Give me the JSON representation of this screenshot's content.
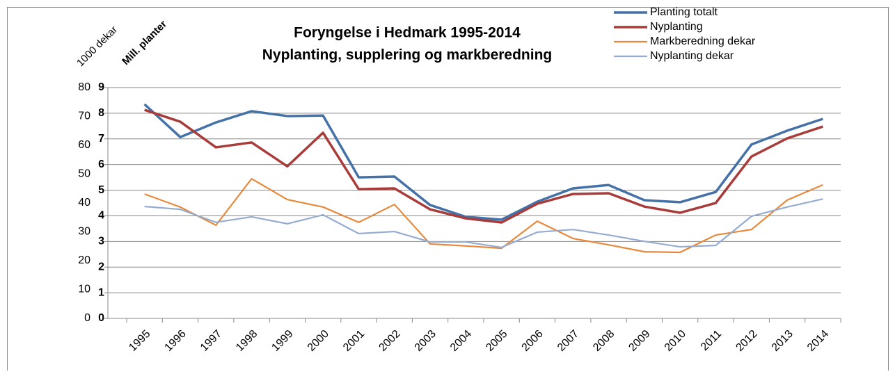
{
  "chart_data": {
    "type": "line",
    "title": "Foryngelse i Hedmark 1995-2014",
    "subtitle": "Nyplanting, supplering og markberedning",
    "ylabel": "1000 dekar",
    "y2label": "Mill. planter",
    "categories": [
      "1995",
      "1996",
      "1997",
      "1998",
      "1999",
      "2000",
      "2001",
      "2002",
      "2003",
      "2004",
      "2005",
      "2006",
      "2007",
      "2008",
      "2009",
      "2010",
      "2011",
      "2012",
      "2013",
      "2014"
    ],
    "series": [
      {
        "name": "Planting totalt",
        "color": "#4472a8",
        "axis": "y2",
        "values": [
          8.35,
          7.07,
          7.64,
          8.08,
          7.89,
          7.91,
          5.5,
          5.53,
          4.42,
          3.96,
          3.85,
          4.55,
          5.07,
          5.2,
          4.61,
          4.53,
          4.93,
          6.78,
          7.32,
          7.78
        ]
      },
      {
        "name": "Nyplanting",
        "color": "#a83c3a",
        "axis": "y2",
        "values": [
          8.13,
          7.67,
          6.67,
          6.86,
          5.93,
          7.24,
          5.04,
          5.07,
          4.25,
          3.9,
          3.74,
          4.47,
          4.85,
          4.88,
          4.36,
          4.12,
          4.5,
          6.31,
          7.02,
          7.48
        ]
      },
      {
        "name": "Markberedning dekar",
        "color": "#e8883a",
        "values": [
          43.1,
          38.6,
          32.3,
          48.4,
          41.2,
          38.6,
          33.3,
          39.5,
          25.8,
          25.1,
          24.3,
          33.7,
          27.7,
          25.5,
          23.1,
          22.9,
          28.9,
          30.8,
          41.0,
          46.3
        ]
      },
      {
        "name": "Nyplanting dekar",
        "color": "#95acd0",
        "values": [
          38.8,
          37.8,
          33.3,
          35.2,
          32.8,
          35.9,
          29.4,
          30.1,
          26.5,
          26.5,
          24.6,
          29.9,
          30.8,
          28.9,
          26.7,
          24.8,
          25.3,
          35.4,
          38.6,
          41.4
        ]
      }
    ],
    "ylim": [
      0,
      80
    ],
    "yticks": [
      0,
      10,
      20,
      30,
      40,
      50,
      60,
      70,
      80
    ],
    "y2lim": [
      0,
      9
    ],
    "y2ticks": [
      0,
      1,
      2,
      3,
      4,
      5,
      6,
      7,
      8,
      9
    ],
    "grid": true,
    "legend": "top-right"
  }
}
